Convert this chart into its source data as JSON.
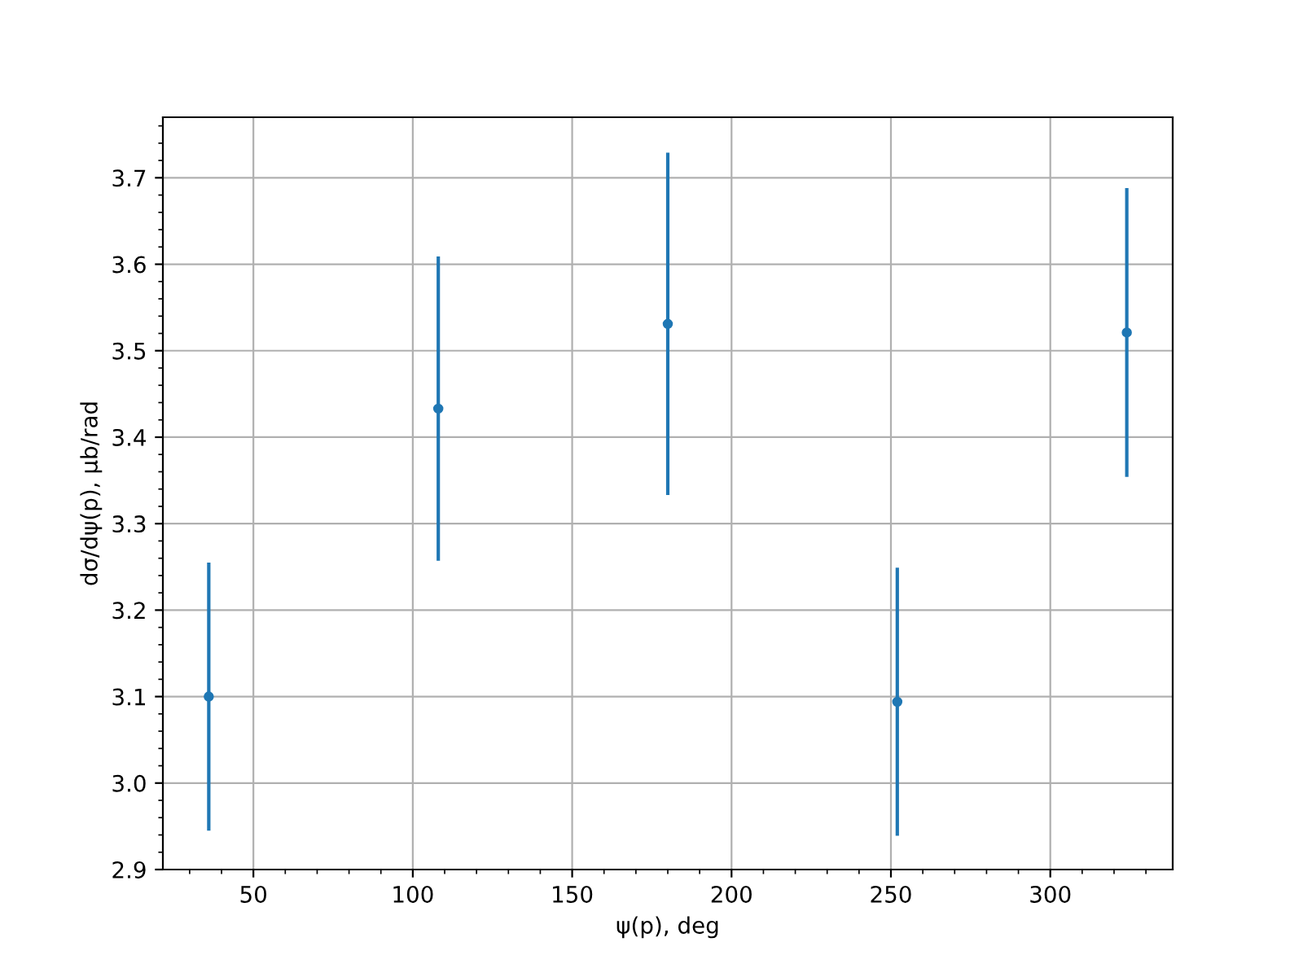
{
  "chart_data": {
    "type": "scatter",
    "xlabel": "ψ(p), deg",
    "ylabel": "dσ/dψ(p), μb/rad",
    "x": [
      36,
      108,
      180,
      252,
      324
    ],
    "series": [
      {
        "color": "#1f77b4",
        "values": [
          3.1,
          3.433,
          3.531,
          3.094,
          3.521
        ],
        "errors": [
          0.155,
          0.176,
          0.198,
          0.155,
          0.167
        ]
      }
    ],
    "xlim": [
      21.6,
      338.4
    ],
    "xticks": [
      50,
      100,
      150,
      200,
      250,
      300
    ],
    "ylim": [
      2.9,
      3.77
    ],
    "yticks": [
      2.9,
      {
        "value": 3,
        "label": "3.0"
      },
      3.1,
      3.2,
      3.3,
      3.4,
      3.5,
      3.6,
      3.7
    ],
    "grid": true,
    "marker": "circle"
  }
}
